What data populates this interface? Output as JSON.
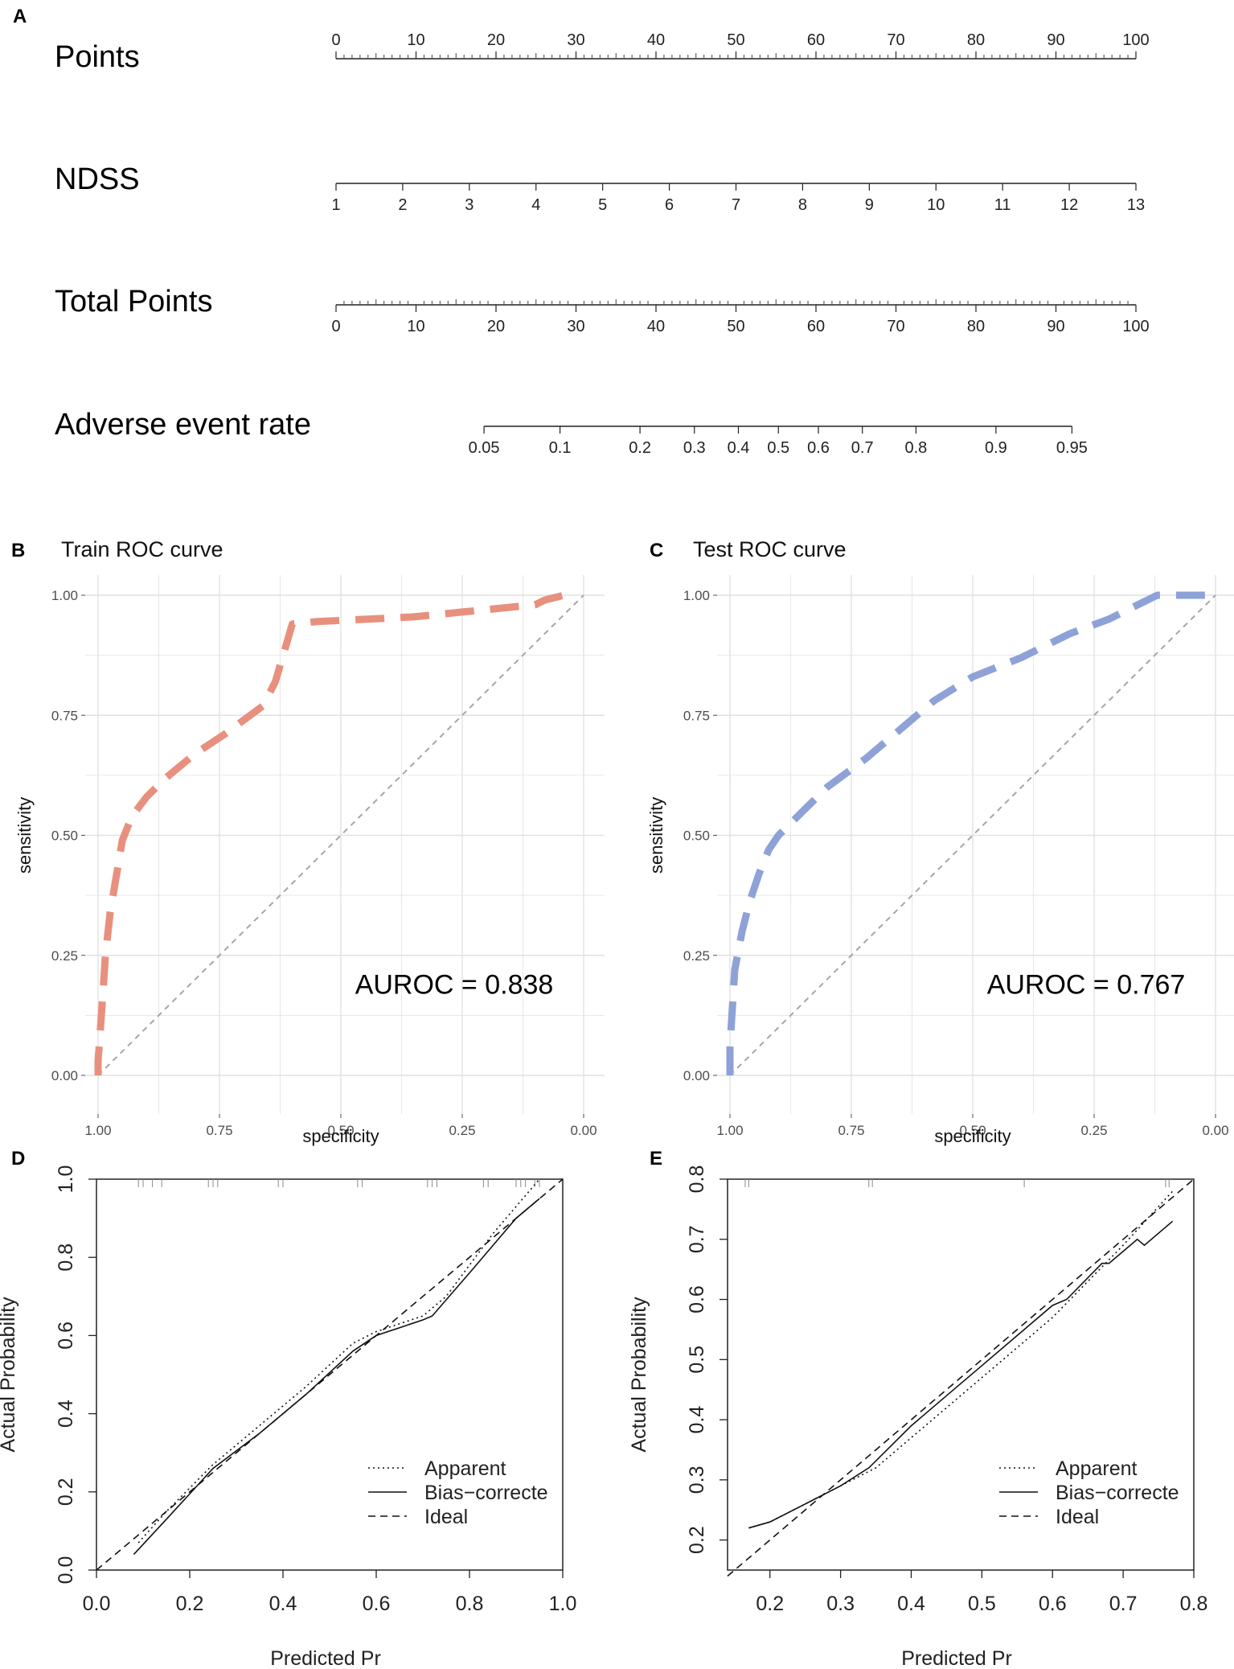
{
  "panels": {
    "A": "A",
    "B": "B",
    "C": "C",
    "D": "D",
    "E": "E"
  },
  "chart_data": [
    {
      "id": "A",
      "type": "nomogram",
      "rows": [
        {
          "label": "Points",
          "min": 0,
          "max": 100,
          "tick_labels": [
            "0",
            "10",
            "20",
            "30",
            "40",
            "50",
            "60",
            "70",
            "80",
            "90",
            "100"
          ]
        },
        {
          "label": "NDSS",
          "min": 1,
          "max": 13,
          "tick_labels": [
            "1",
            "2",
            "3",
            "4",
            "5",
            "6",
            "7",
            "8",
            "9",
            "10",
            "11",
            "12",
            "13"
          ]
        },
        {
          "label": "Total Points",
          "min": 0,
          "max": 100,
          "tick_labels": [
            "0",
            "10",
            "20",
            "30",
            "40",
            "50",
            "60",
            "70",
            "80",
            "90",
            "100"
          ]
        },
        {
          "label": "Adverse event rate",
          "tick_labels": [
            "0.05",
            "0.1",
            "0.2",
            "0.3",
            "0.4",
            "0.5",
            "0.6",
            "0.7",
            "0.8",
            "0.9",
            "0.95"
          ],
          "tick_points": [
            18.5,
            28,
            38,
            44.8,
            50.3,
            55.3,
            60.3,
            65.8,
            72.5,
            82.5,
            92
          ]
        }
      ]
    },
    {
      "id": "B",
      "type": "line",
      "title": "Train ROC curve",
      "xlabel": "specificity",
      "ylabel": "sensitivity",
      "xlim": [
        1.0,
        0.0
      ],
      "ylim": [
        0.0,
        1.0
      ],
      "x_tick_labels": [
        "1.00",
        "0.75",
        "0.50",
        "0.25",
        "0.00"
      ],
      "y_tick_labels": [
        "0.00",
        "0.25",
        "0.50",
        "0.75",
        "1.00"
      ],
      "color": "#e8907e",
      "annotation": "AUROC = 0.838",
      "series": [
        {
          "name": "ROC",
          "specificity": [
            1.0,
            1.0,
            0.995,
            0.99,
            0.985,
            0.975,
            0.96,
            0.95,
            0.93,
            0.9,
            0.86,
            0.8,
            0.74,
            0.7,
            0.66,
            0.635,
            0.6,
            0.55,
            0.45,
            0.35,
            0.25,
            0.2,
            0.15,
            0.1,
            0.08,
            0.04
          ],
          "sensitivity": [
            0.0,
            0.03,
            0.1,
            0.17,
            0.25,
            0.34,
            0.43,
            0.49,
            0.54,
            0.58,
            0.62,
            0.67,
            0.71,
            0.74,
            0.77,
            0.82,
            0.94,
            0.945,
            0.95,
            0.955,
            0.965,
            0.97,
            0.975,
            0.98,
            0.99,
            1.0
          ]
        }
      ]
    },
    {
      "id": "C",
      "type": "line",
      "title": "Test ROC curve",
      "xlabel": "specificity",
      "ylabel": "sensitivity",
      "xlim": [
        1.0,
        0.0
      ],
      "ylim": [
        0.0,
        1.0
      ],
      "x_tick_labels": [
        "1.00",
        "0.75",
        "0.50",
        "0.25",
        "0.00"
      ],
      "y_tick_labels": [
        "0.00",
        "0.25",
        "0.50",
        "0.75",
        "1.00"
      ],
      "color": "#8ea2d8",
      "annotation": "AUROC = 0.767",
      "series": [
        {
          "name": "ROC",
          "specificity": [
            1.0,
            1.0,
            0.995,
            0.99,
            0.975,
            0.96,
            0.94,
            0.92,
            0.9,
            0.88,
            0.85,
            0.8,
            0.72,
            0.65,
            0.58,
            0.5,
            0.4,
            0.3,
            0.22,
            0.12,
            0.05,
            0.0
          ],
          "sensitivity": [
            0.0,
            0.06,
            0.14,
            0.22,
            0.3,
            0.36,
            0.42,
            0.47,
            0.5,
            0.52,
            0.55,
            0.6,
            0.66,
            0.72,
            0.78,
            0.83,
            0.87,
            0.92,
            0.95,
            1.0,
            1.0,
            1.0
          ]
        }
      ]
    },
    {
      "id": "D",
      "type": "line",
      "title": "",
      "xlabel": "Predicted Pr",
      "ylabel": "Actual Probability",
      "xlim": [
        0.0,
        1.0
      ],
      "ylim": [
        0.0,
        1.0
      ],
      "x_tick_labels": [
        "0.0",
        "0.2",
        "0.4",
        "0.6",
        "0.8",
        "1.0"
      ],
      "y_tick_labels": [
        "0.0",
        "0.2",
        "0.4",
        "0.6",
        "0.8",
        "1.0"
      ],
      "legend": [
        "Apparent",
        "Bias−correcte",
        "Ideal"
      ],
      "legend_position": "bottom-right",
      "rug": [
        0.09,
        0.1,
        0.12,
        0.14,
        0.24,
        0.25,
        0.26,
        0.39,
        0.4,
        0.56,
        0.57,
        0.71,
        0.72,
        0.73,
        0.83,
        0.84,
        0.9,
        0.91,
        0.92,
        0.94,
        0.95
      ],
      "series": [
        {
          "name": "Apparent",
          "x": [
            0.09,
            0.15,
            0.25,
            0.35,
            0.45,
            0.55,
            0.6,
            0.65,
            0.7,
            0.75,
            0.8,
            0.85,
            0.9,
            0.95
          ],
          "y": [
            0.07,
            0.15,
            0.27,
            0.37,
            0.47,
            0.58,
            0.61,
            0.63,
            0.65,
            0.7,
            0.78,
            0.86,
            0.93,
            1.0
          ]
        },
        {
          "name": "Bias-corrected",
          "x": [
            0.08,
            0.15,
            0.25,
            0.35,
            0.45,
            0.55,
            0.6,
            0.65,
            0.7,
            0.72,
            0.8,
            0.85,
            0.9,
            0.95
          ],
          "y": [
            0.04,
            0.13,
            0.26,
            0.35,
            0.45,
            0.56,
            0.6,
            0.62,
            0.64,
            0.65,
            0.76,
            0.83,
            0.9,
            0.95
          ]
        },
        {
          "name": "Ideal",
          "x": [
            0.0,
            1.0
          ],
          "y": [
            0.0,
            1.0
          ]
        }
      ]
    },
    {
      "id": "E",
      "type": "line",
      "title": "",
      "xlabel": "Predicted Pr",
      "ylabel": "Actual Probability",
      "xlim": [
        0.14,
        0.8
      ],
      "ylim": [
        0.15,
        0.8
      ],
      "x_ticks": [
        0.2,
        0.3,
        0.4,
        0.5,
        0.6,
        0.7,
        0.8
      ],
      "x_tick_labels": [
        "0.2",
        "0.3",
        "0.4",
        "0.5",
        "0.6",
        "0.7",
        "0.8"
      ],
      "y_ticks": [
        0.2,
        0.3,
        0.4,
        0.5,
        0.6,
        0.7,
        0.8
      ],
      "y_tick_labels": [
        "0.2",
        "0.3",
        "0.4",
        "0.5",
        "0.6",
        "0.7",
        "0.8"
      ],
      "legend": [
        "Apparent",
        "Bias−correcte",
        "Ideal"
      ],
      "legend_position": "bottom-right",
      "rug": [
        0.165,
        0.17,
        0.34,
        0.345,
        0.56,
        0.76,
        0.765
      ],
      "series": [
        {
          "name": "Apparent",
          "x": [
            0.17,
            0.2,
            0.25,
            0.3,
            0.35,
            0.4,
            0.45,
            0.5,
            0.55,
            0.6,
            0.65,
            0.7,
            0.77
          ],
          "y": [
            0.22,
            0.23,
            0.26,
            0.29,
            0.32,
            0.37,
            0.42,
            0.47,
            0.52,
            0.57,
            0.63,
            0.69,
            0.78
          ]
        },
        {
          "name": "Bias-corrected",
          "x": [
            0.17,
            0.2,
            0.25,
            0.3,
            0.34,
            0.4,
            0.45,
            0.5,
            0.55,
            0.6,
            0.62,
            0.67,
            0.68,
            0.72,
            0.73,
            0.76,
            0.77
          ],
          "y": [
            0.22,
            0.23,
            0.26,
            0.29,
            0.32,
            0.39,
            0.44,
            0.49,
            0.54,
            0.59,
            0.6,
            0.66,
            0.66,
            0.7,
            0.69,
            0.72,
            0.73
          ]
        },
        {
          "name": "Ideal",
          "x": [
            0.14,
            0.8
          ],
          "y": [
            0.14,
            0.8
          ]
        }
      ]
    }
  ]
}
